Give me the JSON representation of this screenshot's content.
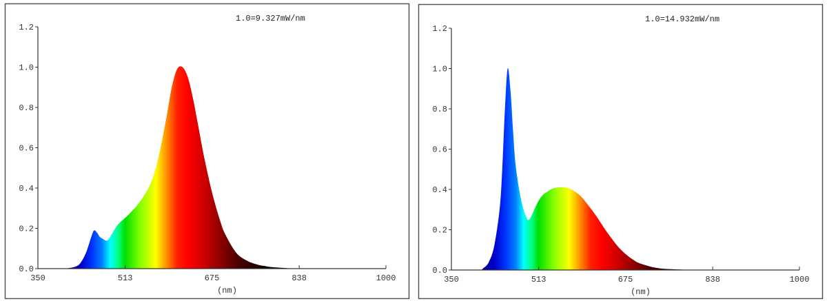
{
  "chart_data": [
    {
      "type": "area",
      "title": "",
      "annotation": "1.0=9.327mW/nm",
      "xlabel": "(nm)",
      "ylabel": "",
      "xlim": [
        350,
        1000
      ],
      "ylim": [
        0,
        1.2
      ],
      "x_ticks": [
        "350",
        "513",
        "675",
        "838",
        "1000"
      ],
      "y_ticks": [
        "0.0",
        "0.2",
        "0.4",
        "0.6",
        "0.8",
        "1.0",
        "1.2"
      ],
      "grid": false,
      "legend": null,
      "fill": "visible-spectrum gradient",
      "x": [
        350,
        380,
        400,
        420,
        430,
        440,
        450,
        455,
        460,
        465,
        470,
        480,
        490,
        500,
        520,
        540,
        560,
        575,
        590,
        600,
        610,
        620,
        630,
        640,
        650,
        660,
        675,
        690,
        700,
        720,
        740,
        760,
        780,
        800,
        838,
        900,
        1000
      ],
      "values": [
        0.0,
        0.0,
        0.0,
        0.01,
        0.03,
        0.08,
        0.16,
        0.19,
        0.18,
        0.16,
        0.15,
        0.14,
        0.18,
        0.22,
        0.27,
        0.33,
        0.42,
        0.55,
        0.75,
        0.9,
        0.99,
        1.0,
        0.95,
        0.84,
        0.7,
        0.56,
        0.38,
        0.24,
        0.17,
        0.08,
        0.04,
        0.02,
        0.01,
        0.005,
        0.0,
        0.0,
        0.0
      ]
    },
    {
      "type": "area",
      "title": "",
      "annotation": "1.0=14.932mW/nm",
      "xlabel": "(nm)",
      "ylabel": "",
      "xlim": [
        350,
        1000
      ],
      "ylim": [
        0,
        1.2
      ],
      "x_ticks": [
        "350",
        "513",
        "675",
        "838",
        "1000"
      ],
      "y_ticks": [
        "0.0",
        "0.2",
        "0.4",
        "0.6",
        "0.8",
        "1.0",
        "1.2"
      ],
      "grid": false,
      "legend": null,
      "fill": "visible-spectrum gradient",
      "x": [
        350,
        400,
        410,
        420,
        430,
        440,
        445,
        450,
        455,
        460,
        465,
        470,
        480,
        490,
        495,
        500,
        510,
        520,
        530,
        540,
        550,
        560,
        570,
        580,
        590,
        600,
        620,
        640,
        660,
        675,
        690,
        700,
        720,
        740,
        760,
        780,
        800,
        838,
        1000
      ],
      "values": [
        0.0,
        0.0,
        0.01,
        0.04,
        0.12,
        0.3,
        0.5,
        0.8,
        1.0,
        0.9,
        0.7,
        0.52,
        0.35,
        0.26,
        0.25,
        0.27,
        0.33,
        0.37,
        0.39,
        0.405,
        0.41,
        0.41,
        0.405,
        0.39,
        0.37,
        0.34,
        0.27,
        0.19,
        0.12,
        0.08,
        0.05,
        0.035,
        0.018,
        0.008,
        0.004,
        0.002,
        0.001,
        0.0,
        0.0
      ]
    }
  ],
  "panels": [
    {
      "annotation": "1.0=9.327mW/nm",
      "xlabel": "(nm)"
    },
    {
      "annotation": "1.0=14.932mW/nm",
      "xlabel": "(nm)"
    }
  ]
}
